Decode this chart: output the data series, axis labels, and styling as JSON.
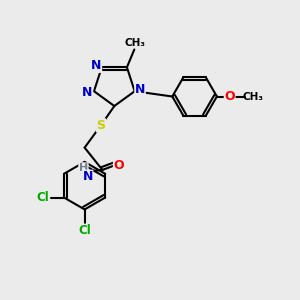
{
  "bg_color": "#ebebeb",
  "atom_colors": {
    "C": "#000000",
    "N": "#0000cc",
    "O": "#ff0000",
    "S": "#cccc00",
    "Cl": "#00aa00",
    "H": "#708090"
  },
  "bond_color": "#000000",
  "bond_width": 1.5
}
